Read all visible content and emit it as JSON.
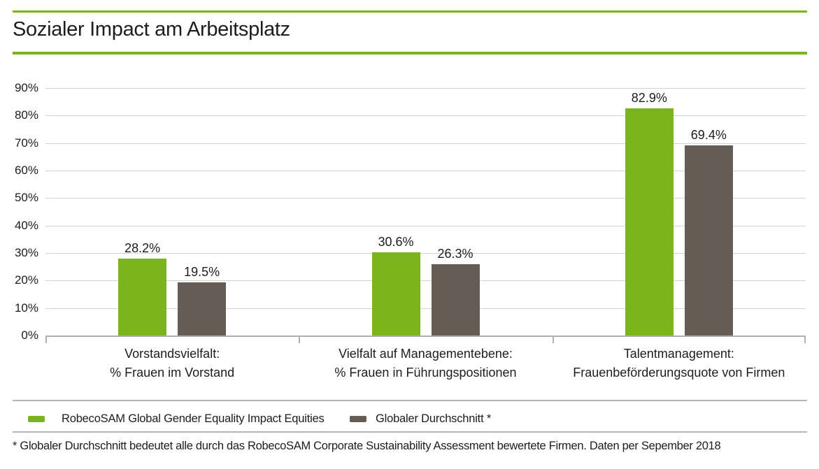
{
  "header": {
    "title": "Sozialer Impact am Arbeitsplatz"
  },
  "chart_data": {
    "type": "bar",
    "title": "Sozialer Impact am Arbeitsplatz",
    "categories": [
      [
        "Vorstandsvielfalt:",
        "% Frauen im Vorstand"
      ],
      [
        "Vielfalt auf Managementebene:",
        "% Frauen in Führungspositionen"
      ],
      [
        "Talentmanagement:",
        "Frauenbeförderungsquote von Firmen"
      ]
    ],
    "series": [
      {
        "name": "RobecoSAM Global Gender Equality Impact Equities",
        "color": "#7ab51d",
        "values": [
          28.2,
          30.6,
          82.9
        ],
        "value_labels": [
          "28.2%",
          "30.6%",
          "82.9%"
        ]
      },
      {
        "name": "Globaler Durchschnitt *",
        "color": "#655c55",
        "values": [
          19.5,
          26.3,
          69.4
        ],
        "value_labels": [
          "19.5%",
          "26.3%",
          "69.4%"
        ]
      }
    ],
    "xlabel": "",
    "ylabel": "",
    "ylim": [
      0,
      90
    ],
    "ytick_step": 10,
    "ytick_labels": [
      "0%",
      "10%",
      "20%",
      "30%",
      "40%",
      "50%",
      "60%",
      "70%",
      "80%",
      "90%"
    ],
    "grid": true,
    "legend_position": "bottom"
  },
  "footnote": {
    "text": "* Globaler Durchschnitt bedeutet alle durch das RobecoSAM Corporate Sustainability Assessment bewertete Firmen. Daten per Sepember 2018"
  },
  "colors": {
    "accent_green": "#7ab51d",
    "bar_dark": "#655c55",
    "gridline": "#d2d2d2",
    "axis": "#b0b0b0",
    "separator": "#b5b5b5",
    "text": "#1d1d1b"
  }
}
